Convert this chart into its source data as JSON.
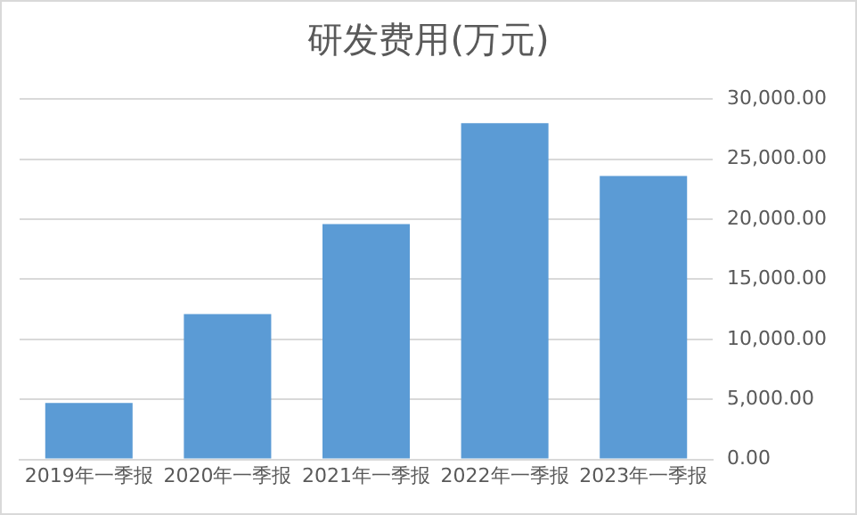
{
  "chart_data": {
    "type": "bar",
    "title": "研发费用(万元)",
    "categories": [
      "2019年一季报",
      "2020年一季报",
      "2021年一季报",
      "2022年一季报",
      "2023年一季报"
    ],
    "values": [
      4700,
      12100,
      19600,
      28000,
      23600
    ],
    "color": "#5b9bd5",
    "ylim": [
      0,
      30000
    ],
    "yticks": [
      {
        "value": 0,
        "label": "0.00"
      },
      {
        "value": 5000,
        "label": "5,000.00"
      },
      {
        "value": 10000,
        "label": "10,000.00"
      },
      {
        "value": 15000,
        "label": "15,000.00"
      },
      {
        "value": 20000,
        "label": "20,000.00"
      },
      {
        "value": 25000,
        "label": "25,000.00"
      },
      {
        "value": 30000,
        "label": "30,000.00"
      }
    ],
    "grid": "y"
  }
}
